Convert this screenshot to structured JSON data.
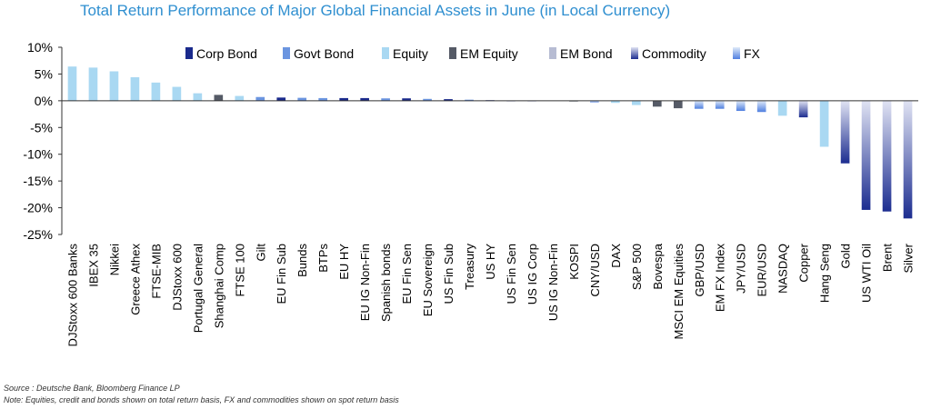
{
  "title": "Total Return Performance of Major Global Financial Assets in June (in Local Currency)",
  "footer": {
    "source": "Source : Deutsche Bank, Bloomberg Finance LP",
    "note": "Note: Equities, credit and bonds shown on total return basis, FX and commodities shown on spot return basis"
  },
  "legend_entries": [
    {
      "name": "Corp Bond",
      "key": "corp"
    },
    {
      "name": "Govt Bond",
      "key": "govt"
    },
    {
      "name": "Equity",
      "key": "equity"
    },
    {
      "name": "EM Equity",
      "key": "em_equity"
    },
    {
      "name": "EM Bond",
      "key": "em_bond"
    },
    {
      "name": "Commodity",
      "key": "commodity"
    },
    {
      "name": "FX",
      "key": "fx"
    }
  ],
  "colors": {
    "corp": "#1a2a8c",
    "govt": "#6b95e0",
    "equity": "#a9d8f2",
    "em_equity": "#555a66",
    "em_bond": "#b7bcd3",
    "commodity_top": "#e0e3f3",
    "commodity_bottom": "#1c2d90",
    "fx_top": "#dfeaf9",
    "fx_bottom": "#4f7fe0",
    "title": "#2f8fd0",
    "axis": "#333333"
  },
  "chart_data": {
    "type": "bar",
    "title": "Total Return Performance of Major Global Financial Assets in June (in Local Currency)",
    "xlabel": "",
    "ylabel": "",
    "ylim": [
      -25,
      10
    ],
    "yticks": [
      10,
      5,
      0,
      -5,
      -10,
      -15,
      -20,
      -25
    ],
    "ytick_labels": [
      "10%",
      "5%",
      "0%",
      "-5%",
      "-10%",
      "-15%",
      "-20%",
      "-25%"
    ],
    "legend_position": "top",
    "categories": [
      "DJStoxx 600 Banks",
      "IBEX 35",
      "Nikkei",
      "Greece Athex",
      "FTSE-MIB",
      "DJStoxx 600",
      "Portugal General",
      "Shanghai Comp",
      "FTSE 100",
      "Gilt",
      "EU Fin Sub",
      "Bunds",
      "BTPs",
      "EU HY",
      "EU IG Non-Fin",
      "Spanish bonds",
      "EU Fin Sen",
      "EU Sovereign",
      "US Fin Sub",
      "Treasury",
      "US HY",
      "US Fin Sen",
      "US IG Corp",
      "US IG Non-Fin",
      "KOSPI",
      "CNY/USD",
      "DAX",
      "S&P 500",
      "Bovespa",
      "MSCI EM Equities",
      "GBP/USD",
      "EM FX Index",
      "JPY/USD",
      "EUR/USD",
      "NASDAQ",
      "Copper",
      "Hang Seng",
      "Gold",
      "US WTI Oil",
      "Brent",
      "Silver"
    ],
    "values": [
      6.4,
      6.2,
      5.5,
      4.4,
      3.4,
      2.6,
      1.4,
      1.1,
      0.9,
      0.7,
      0.6,
      0.55,
      0.5,
      0.5,
      0.5,
      0.45,
      0.45,
      0.35,
      0.3,
      0.2,
      0.1,
      0.05,
      0.05,
      0.0,
      -0.1,
      -0.3,
      -0.4,
      -0.8,
      -1.1,
      -1.4,
      -1.5,
      -1.5,
      -1.9,
      -2.1,
      -2.8,
      -3.1,
      -8.6,
      -11.7,
      -20.4,
      -20.7,
      -22.0
    ],
    "groups": [
      "equity",
      "equity",
      "equity",
      "equity",
      "equity",
      "equity",
      "equity",
      "em_equity",
      "equity",
      "govt",
      "corp",
      "govt",
      "govt",
      "corp",
      "corp",
      "govt",
      "corp",
      "govt",
      "corp",
      "govt",
      "corp",
      "corp",
      "corp",
      "corp",
      "em_equity",
      "fx",
      "equity",
      "equity",
      "em_equity",
      "em_equity",
      "fx",
      "fx",
      "fx",
      "fx",
      "equity",
      "commodity",
      "equity",
      "commodity",
      "commodity",
      "commodity",
      "commodity"
    ]
  }
}
